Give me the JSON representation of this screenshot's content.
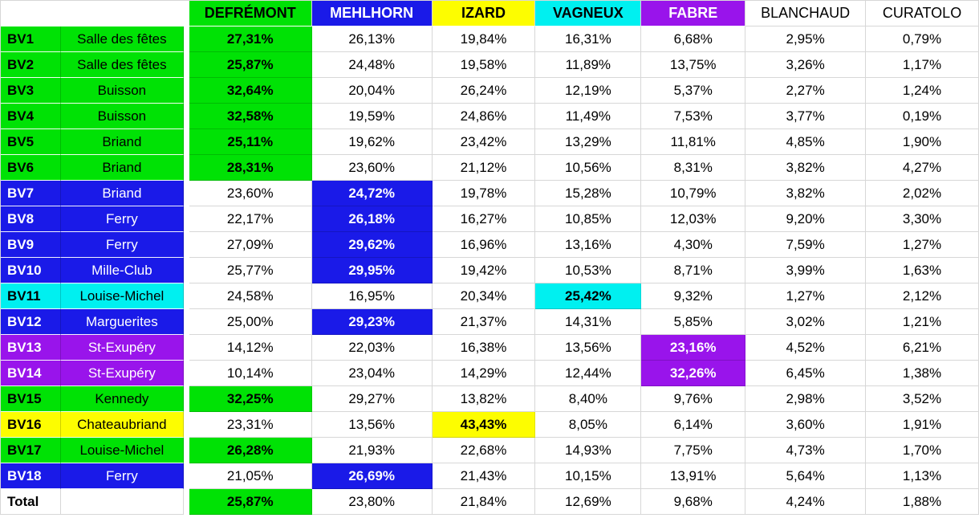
{
  "colors": {
    "green": "#00e205",
    "blue": "#1a1ae8",
    "yellow": "#fdfd00",
    "cyan": "#00f0f0",
    "purple": "#9914eb",
    "white": "#ffffff"
  },
  "text_on": {
    "green": "#000000",
    "blue": "#ffffff",
    "yellow": "#000000",
    "cyan": "#000000",
    "purple": "#ffffff",
    "white": "#000000"
  },
  "header": {
    "corner_labels": [
      "",
      ""
    ],
    "candidates": [
      {
        "name": "DEFRÉMONT",
        "color": "green"
      },
      {
        "name": "MEHLHORN",
        "color": "blue"
      },
      {
        "name": "IZARD",
        "color": "yellow"
      },
      {
        "name": "VAGNEUX",
        "color": "cyan"
      },
      {
        "name": "FABRE",
        "color": "purple"
      },
      {
        "name": "BLANCHAUD",
        "color": "white"
      },
      {
        "name": "CURATOLO",
        "color": "white"
      }
    ]
  },
  "rows": [
    {
      "label": "BV1",
      "location": "Salle des fêtes",
      "row_color": "green",
      "winner": 0,
      "values": [
        "27,31%",
        "26,13%",
        "19,84%",
        "16,31%",
        "6,68%",
        "2,95%",
        "0,79%"
      ]
    },
    {
      "label": "BV2",
      "location": "Salle des fêtes",
      "row_color": "green",
      "winner": 0,
      "values": [
        "25,87%",
        "24,48%",
        "19,58%",
        "11,89%",
        "13,75%",
        "3,26%",
        "1,17%"
      ]
    },
    {
      "label": "BV3",
      "location": "Buisson",
      "row_color": "green",
      "winner": 0,
      "values": [
        "32,64%",
        "20,04%",
        "26,24%",
        "12,19%",
        "5,37%",
        "2,27%",
        "1,24%"
      ]
    },
    {
      "label": "BV4",
      "location": "Buisson",
      "row_color": "green",
      "winner": 0,
      "values": [
        "32,58%",
        "19,59%",
        "24,86%",
        "11,49%",
        "7,53%",
        "3,77%",
        "0,19%"
      ]
    },
    {
      "label": "BV5",
      "location": "Briand",
      "row_color": "green",
      "winner": 0,
      "values": [
        "25,11%",
        "19,62%",
        "23,42%",
        "13,29%",
        "11,81%",
        "4,85%",
        "1,90%"
      ]
    },
    {
      "label": "BV6",
      "location": "Briand",
      "row_color": "green",
      "winner": 0,
      "values": [
        "28,31%",
        "23,60%",
        "21,12%",
        "10,56%",
        "8,31%",
        "3,82%",
        "4,27%"
      ]
    },
    {
      "label": "BV7",
      "location": "Briand",
      "row_color": "blue",
      "winner": 1,
      "values": [
        "23,60%",
        "24,72%",
        "19,78%",
        "15,28%",
        "10,79%",
        "3,82%",
        "2,02%"
      ]
    },
    {
      "label": "BV8",
      "location": "Ferry",
      "row_color": "blue",
      "winner": 1,
      "values": [
        "22,17%",
        "26,18%",
        "16,27%",
        "10,85%",
        "12,03%",
        "9,20%",
        "3,30%"
      ]
    },
    {
      "label": "BV9",
      "location": "Ferry",
      "row_color": "blue",
      "winner": 1,
      "values": [
        "27,09%",
        "29,62%",
        "16,96%",
        "13,16%",
        "4,30%",
        "7,59%",
        "1,27%"
      ]
    },
    {
      "label": "BV10",
      "location": "Mille-Club",
      "row_color": "blue",
      "winner": 1,
      "values": [
        "25,77%",
        "29,95%",
        "19,42%",
        "10,53%",
        "8,71%",
        "3,99%",
        "1,63%"
      ]
    },
    {
      "label": "BV11",
      "location": "Louise-Michel",
      "row_color": "cyan",
      "winner": 3,
      "values": [
        "24,58%",
        "16,95%",
        "20,34%",
        "25,42%",
        "9,32%",
        "1,27%",
        "2,12%"
      ]
    },
    {
      "label": "BV12",
      "location": "Marguerites",
      "row_color": "blue",
      "winner": 1,
      "values": [
        "25,00%",
        "29,23%",
        "21,37%",
        "14,31%",
        "5,85%",
        "3,02%",
        "1,21%"
      ]
    },
    {
      "label": "BV13",
      "location": "St-Exupéry",
      "row_color": "purple",
      "winner": 4,
      "values": [
        "14,12%",
        "22,03%",
        "16,38%",
        "13,56%",
        "23,16%",
        "4,52%",
        "6,21%"
      ]
    },
    {
      "label": "BV14",
      "location": "St-Exupéry",
      "row_color": "purple",
      "winner": 4,
      "values": [
        "10,14%",
        "23,04%",
        "14,29%",
        "12,44%",
        "32,26%",
        "6,45%",
        "1,38%"
      ]
    },
    {
      "label": "BV15",
      "location": "Kennedy",
      "row_color": "green",
      "winner": 0,
      "values": [
        "32,25%",
        "29,27%",
        "13,82%",
        "8,40%",
        "9,76%",
        "2,98%",
        "3,52%"
      ]
    },
    {
      "label": "BV16",
      "location": "Chateaubriand",
      "row_color": "yellow",
      "winner": 2,
      "values": [
        "23,31%",
        "13,56%",
        "43,43%",
        "8,05%",
        "6,14%",
        "3,60%",
        "1,91%"
      ]
    },
    {
      "label": "BV17",
      "location": "Louise-Michel",
      "row_color": "green",
      "winner": 0,
      "values": [
        "26,28%",
        "21,93%",
        "22,68%",
        "14,93%",
        "7,75%",
        "4,73%",
        "1,70%"
      ]
    },
    {
      "label": "BV18",
      "location": "Ferry",
      "row_color": "blue",
      "winner": 1,
      "values": [
        "21,05%",
        "26,69%",
        "21,43%",
        "10,15%",
        "13,91%",
        "5,64%",
        "1,13%"
      ]
    },
    {
      "label": "Total",
      "location": "",
      "row_color": "white",
      "winner": 0,
      "values": [
        "25,87%",
        "23,80%",
        "21,84%",
        "12,69%",
        "9,68%",
        "4,24%",
        "1,88%"
      ]
    }
  ]
}
